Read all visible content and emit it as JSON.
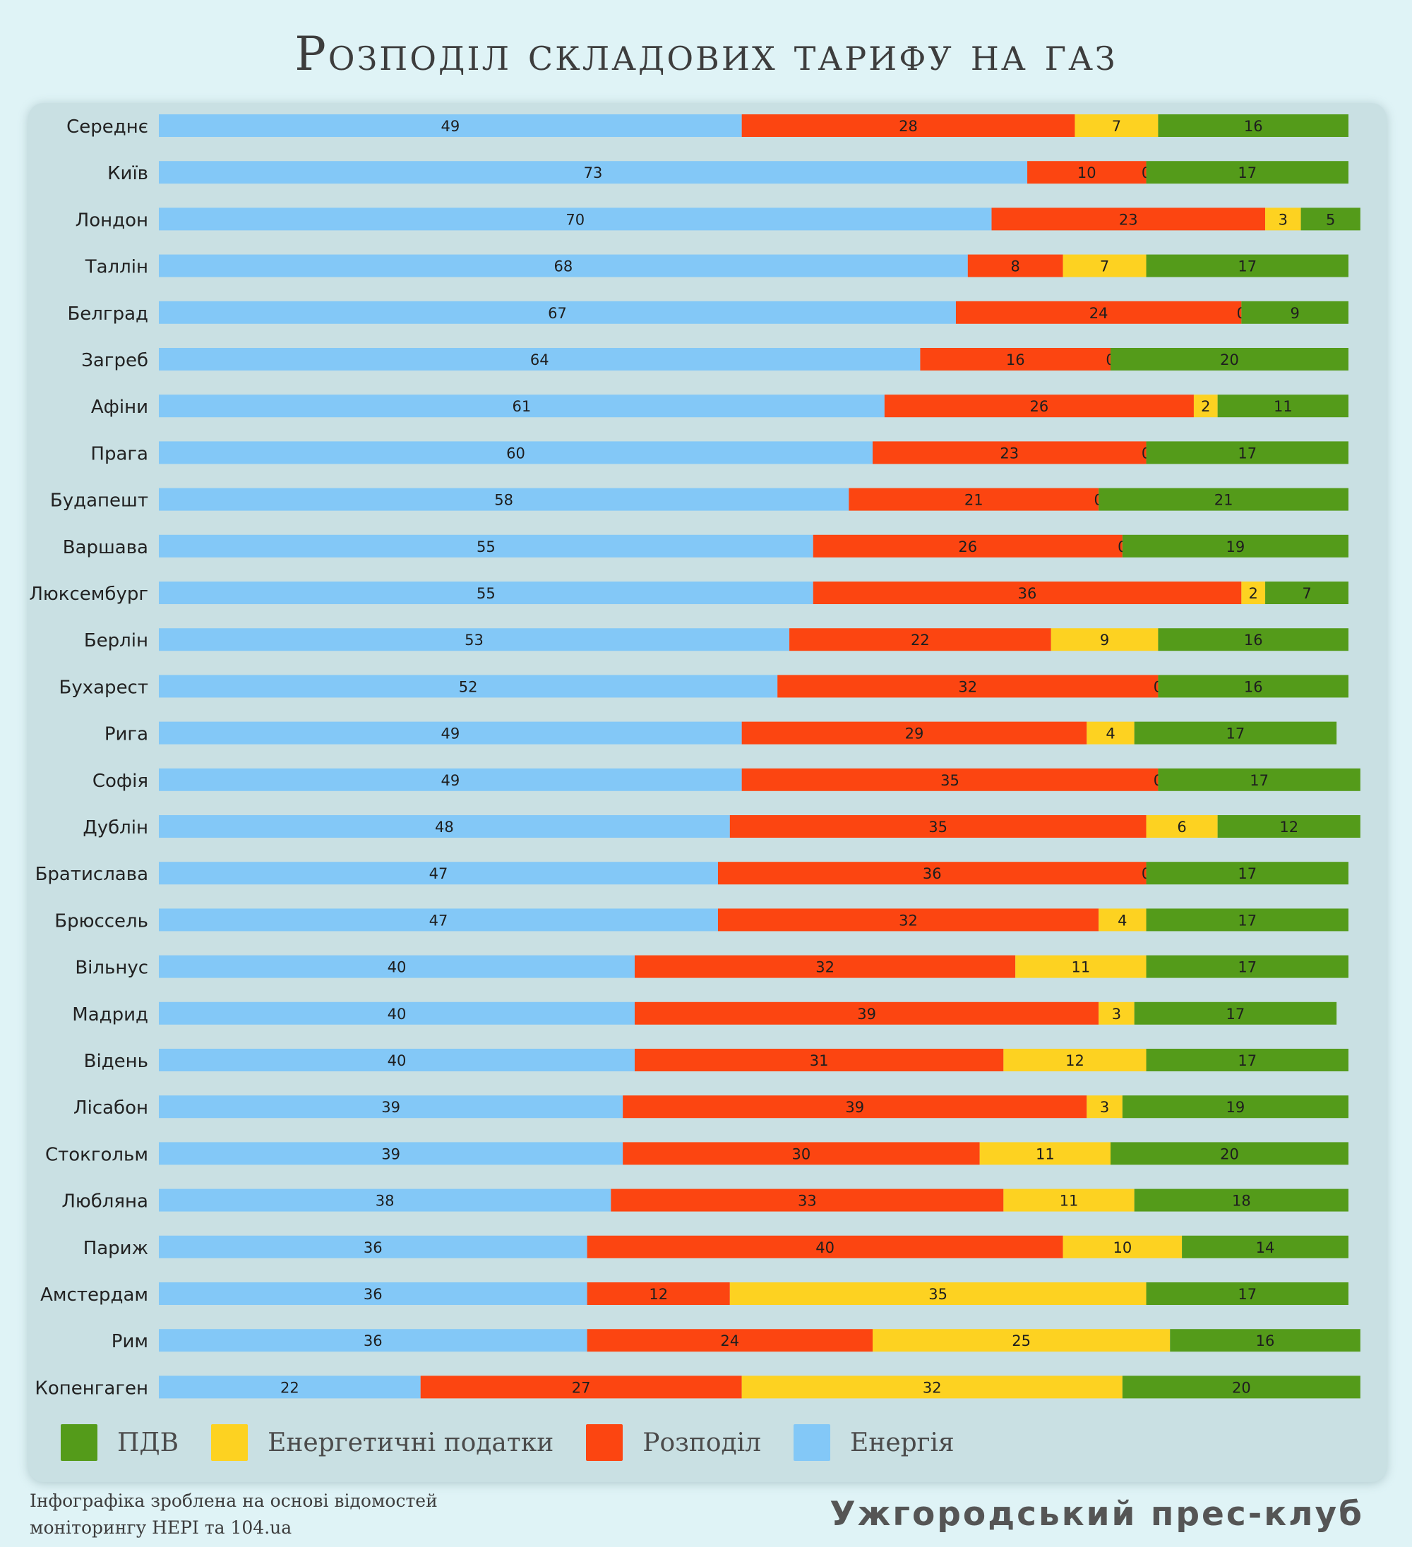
{
  "title": "Розподіл складових тарифу на газ",
  "chart_data": {
    "type": "bar",
    "orientation": "horizontal",
    "stacked": true,
    "categories": [
      "Середнє",
      "Київ",
      "Лондон",
      "Таллін",
      "Белград",
      "Загреб",
      "Афіни",
      "Прага",
      "Будапешт",
      "Варшава",
      "Люксембург",
      "Берлін",
      "Бухарест",
      "Рига",
      "Софія",
      "Дублін",
      "Братислава",
      "Брюссель",
      "Вільнус",
      "Мадрид",
      "Відень",
      "Лісабон",
      "Стокгольм",
      "Любляна",
      "Париж",
      "Амстердам",
      "Рим",
      "Копенгаген"
    ],
    "series": [
      {
        "name": "Енергія",
        "color": "#83c8f7",
        "values": [
          49,
          73,
          70,
          68,
          67,
          64,
          61,
          60,
          58,
          55,
          55,
          53,
          52,
          49,
          49,
          48,
          47,
          47,
          40,
          40,
          40,
          39,
          39,
          38,
          36,
          36,
          36,
          22
        ]
      },
      {
        "name": "Розподіл",
        "color": "#fc4511",
        "values": [
          28,
          10,
          23,
          8,
          24,
          16,
          26,
          23,
          21,
          26,
          36,
          22,
          32,
          29,
          35,
          35,
          36,
          32,
          32,
          39,
          31,
          39,
          30,
          33,
          40,
          12,
          24,
          27
        ]
      },
      {
        "name": "Енергетичні податки",
        "color": "#fdd221",
        "values": [
          7,
          0,
          3,
          7,
          0,
          0,
          2,
          0,
          0,
          0,
          2,
          9,
          0,
          4,
          0,
          6,
          0,
          4,
          11,
          3,
          12,
          3,
          11,
          11,
          10,
          35,
          25,
          32
        ]
      },
      {
        "name": "ПДВ",
        "color": "#549b1a",
        "values": [
          16,
          17,
          5,
          17,
          9,
          20,
          11,
          17,
          21,
          19,
          7,
          16,
          16,
          17,
          17,
          12,
          17,
          17,
          17,
          17,
          17,
          19,
          20,
          18,
          14,
          17,
          16,
          20
        ]
      }
    ],
    "legend_order": [
      "ПДВ",
      "Енергетичні податки",
      "Розподіл",
      "Енергія"
    ],
    "legend_position": "bottom-left",
    "xlabel": "",
    "ylabel": ""
  },
  "footer": {
    "source_line1": "Інфографіка зроблена на основі відомостей",
    "source_line2": "моніторингу НЕРІ та 104.ua",
    "brand": "Ужгородський прес-клуб"
  }
}
